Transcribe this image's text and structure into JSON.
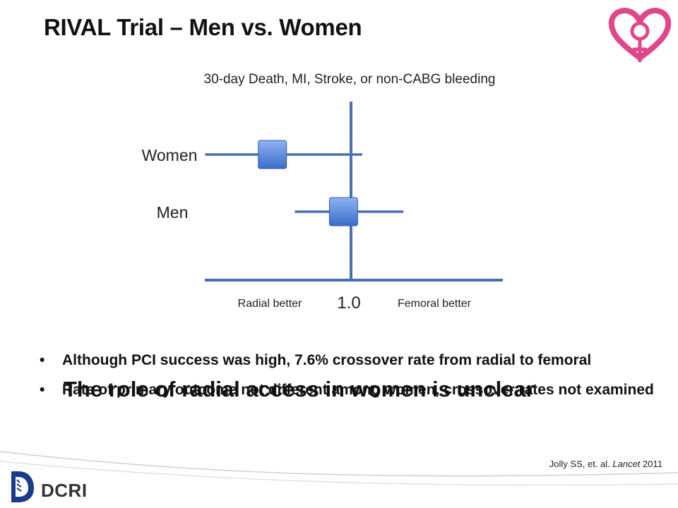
{
  "slide": {
    "title": "RIVAL Trial – Men vs. Women",
    "overlay_text": "The role of radial access in women is unclear",
    "bullets": [
      "Although PCI success was high, 7.6% crossover rate from radial to femoral",
      "Rate of primary outcome not different among women, crossover rates not examined"
    ],
    "bullet_symbol": "•",
    "citation": {
      "prefix": "Jolly SS, et. al. ",
      "journal": "Lancet",
      "year": " 2011"
    },
    "footer_logo_text": "DCRI"
  },
  "icons": {
    "top_right": "heart-female-symbol-icon",
    "bottom_left": "duke-d-icon"
  },
  "colors": {
    "marker_fill": "#4f81d9",
    "axis": "#4a6fb5",
    "logo_pink": "#e0468a"
  },
  "chart_data": {
    "type": "forest",
    "title": "30-day Death, MI, Stroke, or non-CABG bleeding",
    "reference_label": "1.0",
    "left_label": "Radial better",
    "right_label": "Femoral better",
    "rows": [
      {
        "label": "Women",
        "estimate": 0.79,
        "ci": [
          0.61,
          1.03
        ]
      },
      {
        "label": "Men",
        "estimate": 0.98,
        "ci": [
          0.85,
          1.14
        ]
      }
    ]
  }
}
